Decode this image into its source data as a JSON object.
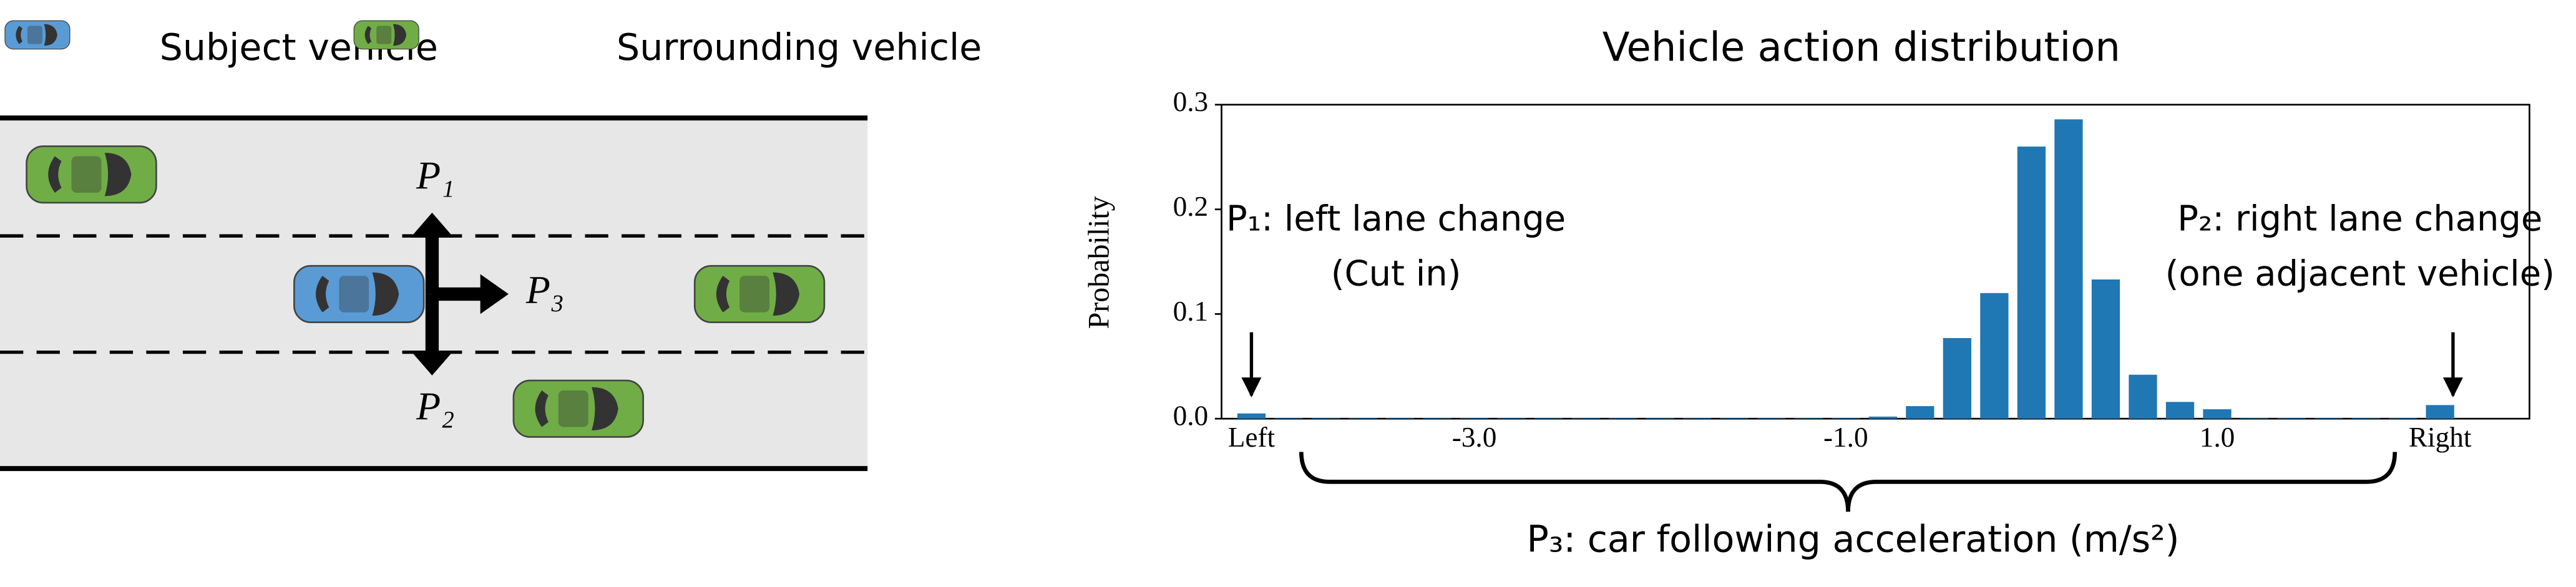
{
  "legend": {
    "subject": "Subject vehicle",
    "surrounding": "Surrounding vehicle"
  },
  "diagram": {
    "p1": "P₁",
    "p2": "P₂",
    "p3": "P₃"
  },
  "chart_data": {
    "type": "bar",
    "title": "Vehicle action distribution",
    "y_label": "Probability",
    "color": "#1f77b4",
    "categories": [
      "Left",
      null,
      null,
      null,
      null,
      null,
      "-3.0",
      null,
      null,
      null,
      null,
      null,
      null,
      null,
      null,
      null,
      "-1.0",
      null,
      null,
      null,
      null,
      null,
      null,
      null,
      null,
      null,
      "1.0",
      null,
      null,
      null,
      null,
      null,
      "Right"
    ],
    "values": [
      0.005,
      0.0005,
      0.0005,
      0.0005,
      0.0005,
      0.0005,
      0.0005,
      0.0005,
      0.0005,
      0.0005,
      0.0005,
      0.0005,
      0.0005,
      0.0005,
      0.0005,
      0.0005,
      0.0005,
      0.002,
      0.012,
      0.077,
      0.12,
      0.26,
      0.286,
      0.133,
      0.042,
      0.016,
      0.009,
      0.0005,
      0.0005,
      0.0005,
      0.0005,
      0.0005,
      0.013
    ],
    "ylim": [
      0,
      0.3
    ],
    "yticks": [
      {
        "value": 0,
        "label": "0.0"
      },
      0.1,
      0.2,
      0.3
    ],
    "annotations": {
      "left": "P₁: left lane change",
      "left_note": "(Cut in)",
      "right": "P₂: right lane change",
      "right_note": "(one adjacent vehicle)",
      "bottom": "P₃: car following acceleration (m/s²)"
    }
  }
}
